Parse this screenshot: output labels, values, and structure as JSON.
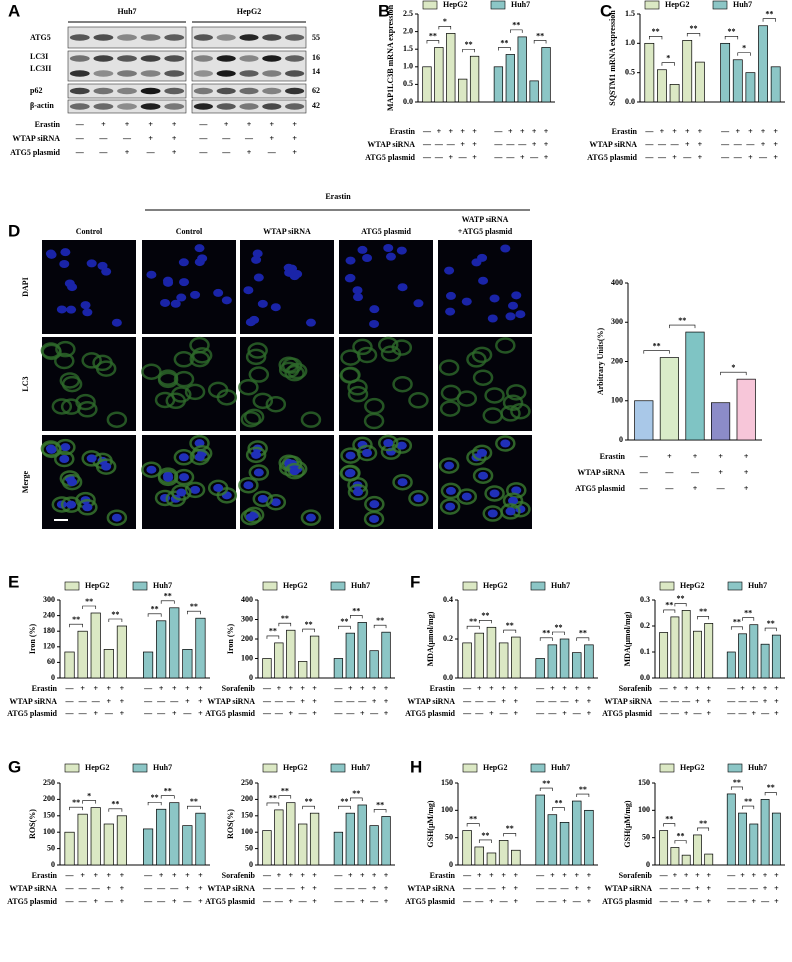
{
  "panel_labels": [
    "A",
    "B",
    "C",
    "D",
    "E",
    "F",
    "G",
    "H"
  ],
  "blot": {
    "cell_lines": [
      "Huh7",
      "HepG2"
    ],
    "proteins": [
      "ATG5",
      "LC3I",
      "LC3II",
      "p62",
      "β-actin"
    ],
    "sizes": [
      "55",
      "16",
      "14",
      "62",
      "42"
    ],
    "conditions": [
      {
        "name": "Erastin",
        "values": [
          "—",
          "+",
          "+",
          "+",
          "+",
          "—",
          "+",
          "+",
          "+",
          "+"
        ]
      },
      {
        "name": "WTAP siRNA",
        "values": [
          "—",
          "—",
          "—",
          "+",
          "+",
          "—",
          "—",
          "—",
          "+",
          "+"
        ]
      },
      {
        "name": "ATG5 plasmid",
        "values": [
          "—",
          "—",
          "+",
          "—",
          "+",
          "—",
          "—",
          "+",
          "—",
          "+"
        ]
      }
    ]
  },
  "microscopy": {
    "treatment": "Erastin",
    "columns": [
      [
        "Control"
      ],
      [
        "Control"
      ],
      [
        "WTAP siRNA"
      ],
      [
        "ATG5 plasmid"
      ],
      [
        "WATP siRNA",
        "+ATG5 plasmid"
      ]
    ],
    "rows": [
      "DAPI",
      "LC3",
      "Merge"
    ]
  },
  "chart_data": [
    {
      "type": "bar",
      "ylabel": "MAP1LC3B mRNA expression",
      "ylim": [
        0,
        2.5
      ],
      "yticks": [
        {
          "value": 0,
          "label": "0.0"
        },
        0.5,
        {
          "value": 1,
          "label": "1.0"
        },
        1.5,
        {
          "value": 2,
          "label": "2.0"
        },
        2.5
      ],
      "series": [
        {
          "name": "HepG2",
          "color": "#dbe8c4",
          "values": [
            1.0,
            1.55,
            1.95,
            0.65,
            1.3
          ],
          "significance": [
            null,
            "**",
            "*",
            null,
            "**"
          ]
        },
        {
          "name": "Huh7",
          "color": "#8cc6c6",
          "values": [
            1.0,
            1.35,
            1.85,
            0.6,
            1.55
          ],
          "significance": [
            null,
            "**",
            "**",
            null,
            "**"
          ]
        }
      ],
      "conditions": [
        {
          "name": "Erastin",
          "values": [
            "—",
            "+",
            "+",
            "+",
            "+",
            "—",
            "+",
            "+",
            "+",
            "+"
          ]
        },
        {
          "name": "WTAP siRNA",
          "values": [
            "—",
            "—",
            "—",
            "+",
            "+",
            "—",
            "—",
            "—",
            "+",
            "+"
          ]
        },
        {
          "name": "ATG5 plasmid",
          "values": [
            "—",
            "—",
            "+",
            "—",
            "+",
            "—",
            "—",
            "+",
            "—",
            "+"
          ]
        }
      ]
    },
    {
      "type": "bar",
      "ylabel": "SQSTM1 mRNA expression",
      "ylim": [
        0,
        1.5
      ],
      "yticks": [
        {
          "value": 0,
          "label": "0.0"
        },
        0.5,
        {
          "value": 1,
          "label": "1.0"
        },
        1.5
      ],
      "series": [
        {
          "name": "HepG2",
          "color": "#dbe8c4",
          "values": [
            1.0,
            0.55,
            0.3,
            1.05,
            0.68
          ],
          "significance": [
            null,
            "**",
            "*",
            null,
            "**"
          ]
        },
        {
          "name": "Huh7",
          "color": "#8cc6c6",
          "values": [
            1.0,
            0.72,
            0.5,
            1.3,
            0.6
          ],
          "significance": [
            null,
            "**",
            "*",
            null,
            "**"
          ]
        }
      ],
      "conditions": [
        {
          "name": "Erastin",
          "values": [
            "—",
            "+",
            "+",
            "+",
            "+",
            "—",
            "+",
            "+",
            "+",
            "+"
          ]
        },
        {
          "name": "WTAP siRNA",
          "values": [
            "—",
            "—",
            "—",
            "+",
            "+",
            "—",
            "—",
            "—",
            "+",
            "+"
          ]
        },
        {
          "name": "ATG5 plasmid",
          "values": [
            "—",
            "—",
            "+",
            "—",
            "+",
            "—",
            "—",
            "+",
            "—",
            "+"
          ]
        }
      ]
    },
    {
      "type": "bar",
      "ylabel": "Arbitrary Units(%)",
      "ylim": [
        0,
        400
      ],
      "yticks": [
        0,
        100,
        200,
        300,
        400
      ],
      "values": [
        100,
        210,
        275,
        95,
        155
      ],
      "colors": [
        "#a9c8e8",
        "#d9ecc8",
        "#7fc4c4",
        "#8c8cc8",
        "#f7c6d9"
      ],
      "significance": [
        null,
        "**",
        "**",
        null,
        "*"
      ],
      "conditions": [
        {
          "name": "Erastin",
          "values": [
            "—",
            "+",
            "+",
            "+",
            "+"
          ]
        },
        {
          "name": "WTAP siRNA",
          "values": [
            "—",
            "—",
            "—",
            "+",
            "+"
          ]
        },
        {
          "name": "ATG5 plasmid",
          "values": [
            "—",
            "—",
            "+",
            "—",
            "+"
          ]
        }
      ]
    },
    {
      "type": "bar",
      "ylabel": "Iron (%)",
      "ylim": [
        0,
        300
      ],
      "yticks": [
        0,
        60,
        120,
        180,
        240,
        300
      ],
      "series": [
        {
          "name": "HepG2",
          "color": "#dbe8c4",
          "values": [
            100,
            180,
            250,
            110,
            200
          ],
          "significance": [
            null,
            "**",
            "**",
            null,
            "**"
          ]
        },
        {
          "name": "Huh7",
          "color": "#8cc6c6",
          "values": [
            100,
            220,
            270,
            110,
            230
          ],
          "significance": [
            null,
            "**",
            "**",
            null,
            "**"
          ]
        }
      ],
      "conditions": [
        {
          "name": "Erastin",
          "values": [
            "—",
            "+",
            "+",
            "+",
            "+",
            "—",
            "+",
            "+",
            "+",
            "+"
          ]
        },
        {
          "name": "WTAP siRNA",
          "values": [
            "—",
            "—",
            "—",
            "+",
            "+",
            "—",
            "—",
            "—",
            "+",
            "+"
          ]
        },
        {
          "name": "ATG5 plasmid",
          "values": [
            "—",
            "—",
            "+",
            "—",
            "+",
            "—",
            "—",
            "+",
            "—",
            "+"
          ]
        }
      ]
    },
    {
      "type": "bar",
      "ylabel": "Iron (%)",
      "ylim": [
        0,
        400
      ],
      "yticks": [
        0,
        100,
        200,
        300,
        400
      ],
      "series": [
        {
          "name": "HepG2",
          "color": "#dbe8c4",
          "values": [
            100,
            180,
            245,
            85,
            215
          ],
          "significance": [
            null,
            "**",
            "**",
            null,
            "**"
          ]
        },
        {
          "name": "Huh7",
          "color": "#8cc6c6",
          "values": [
            100,
            230,
            285,
            140,
            235
          ],
          "significance": [
            null,
            "**",
            "**",
            null,
            "**"
          ]
        }
      ],
      "conditions": [
        {
          "name": "Sorafenib",
          "values": [
            "—",
            "+",
            "+",
            "+",
            "+",
            "—",
            "+",
            "+",
            "+",
            "+"
          ]
        },
        {
          "name": "WTAP siRNA",
          "values": [
            "—",
            "—",
            "—",
            "+",
            "+",
            "—",
            "—",
            "—",
            "+",
            "+"
          ]
        },
        {
          "name": "ATG5 plasmid",
          "values": [
            "—",
            "—",
            "+",
            "—",
            "+",
            "—",
            "—",
            "+",
            "—",
            "+"
          ]
        }
      ]
    },
    {
      "type": "bar",
      "ylabel": "MDA(μmol/mg)",
      "ylim": [
        0,
        0.4
      ],
      "yticks": [
        {
          "value": 0,
          "label": "0.0"
        },
        0.2,
        0.4
      ],
      "series": [
        {
          "name": "HepG2",
          "color": "#dbe8c4",
          "values": [
            0.18,
            0.23,
            0.26,
            0.18,
            0.21
          ],
          "significance": [
            null,
            "**",
            "**",
            null,
            "**"
          ]
        },
        {
          "name": "Huh7",
          "color": "#8cc6c6",
          "values": [
            0.1,
            0.17,
            0.2,
            0.13,
            0.17
          ],
          "significance": [
            null,
            "**",
            "**",
            null,
            "**"
          ]
        }
      ],
      "conditions": [
        {
          "name": "Erastin",
          "values": [
            "—",
            "+",
            "+",
            "+",
            "+",
            "—",
            "+",
            "+",
            "+",
            "+"
          ]
        },
        {
          "name": "WTAP siRNA",
          "values": [
            "—",
            "—",
            "—",
            "+",
            "+",
            "—",
            "—",
            "—",
            "+",
            "+"
          ]
        },
        {
          "name": "ATG5 plasmid",
          "values": [
            "—",
            "—",
            "+",
            "—",
            "+",
            "—",
            "—",
            "+",
            "—",
            "+"
          ]
        }
      ]
    },
    {
      "type": "bar",
      "ylabel": "MDA(μmol/mg)",
      "ylim": [
        0,
        0.3
      ],
      "yticks": [
        {
          "value": 0,
          "label": "0.0"
        },
        0.1,
        0.2,
        0.3
      ],
      "series": [
        {
          "name": "HepG2",
          "color": "#dbe8c4",
          "values": [
            0.175,
            0.235,
            0.26,
            0.18,
            0.21
          ],
          "significance": [
            null,
            "**",
            "**",
            null,
            "**"
          ]
        },
        {
          "name": "Huh7",
          "color": "#8cc6c6",
          "values": [
            0.1,
            0.17,
            0.205,
            0.13,
            0.165
          ],
          "significance": [
            null,
            "**",
            "**",
            null,
            "**"
          ]
        }
      ],
      "conditions": [
        {
          "name": "Sorafenib",
          "values": [
            "—",
            "+",
            "+",
            "+",
            "+",
            "—",
            "+",
            "+",
            "+",
            "+"
          ]
        },
        {
          "name": "WTAP siRNA",
          "values": [
            "—",
            "—",
            "—",
            "+",
            "+",
            "—",
            "—",
            "—",
            "+",
            "+"
          ]
        },
        {
          "name": "ATG5 plasmid",
          "values": [
            "—",
            "—",
            "+",
            "—",
            "+",
            "—",
            "—",
            "+",
            "—",
            "+"
          ]
        }
      ]
    },
    {
      "type": "bar",
      "ylabel": "ROS(%)",
      "ylim": [
        0,
        250
      ],
      "yticks": [
        0,
        50,
        100,
        150,
        200,
        250
      ],
      "series": [
        {
          "name": "HepG2",
          "color": "#dbe8c4",
          "values": [
            100,
            155,
            175,
            125,
            150
          ],
          "significance": [
            null,
            "**",
            "*",
            null,
            "**"
          ]
        },
        {
          "name": "Huh7",
          "color": "#8cc6c6",
          "values": [
            110,
            170,
            190,
            120,
            158
          ],
          "significance": [
            null,
            "**",
            "**",
            null,
            "**"
          ]
        }
      ],
      "conditions": [
        {
          "name": "Erastin",
          "values": [
            "—",
            "+",
            "+",
            "+",
            "+",
            "—",
            "+",
            "+",
            "+",
            "+"
          ]
        },
        {
          "name": "WTAP siRNA",
          "values": [
            "—",
            "—",
            "—",
            "+",
            "+",
            "—",
            "—",
            "—",
            "+",
            "+"
          ]
        },
        {
          "name": "ATG5 plasmid",
          "values": [
            "—",
            "—",
            "+",
            "—",
            "+",
            "—",
            "—",
            "+",
            "—",
            "+"
          ]
        }
      ]
    },
    {
      "type": "bar",
      "ylabel": "ROS(%)",
      "ylim": [
        0,
        250
      ],
      "yticks": [
        0,
        50,
        100,
        150,
        200,
        250
      ],
      "series": [
        {
          "name": "HepG2",
          "color": "#dbe8c4",
          "values": [
            105,
            168,
            190,
            125,
            158
          ],
          "significance": [
            null,
            "**",
            "**",
            null,
            "**"
          ]
        },
        {
          "name": "Huh7",
          "color": "#8cc6c6",
          "values": [
            100,
            158,
            183,
            120,
            148
          ],
          "significance": [
            null,
            "**",
            "**",
            null,
            "**"
          ]
        }
      ],
      "conditions": [
        {
          "name": "Sorafenib",
          "values": [
            "—",
            "+",
            "+",
            "+",
            "+",
            "—",
            "+",
            "+",
            "+",
            "+"
          ]
        },
        {
          "name": "WTAP siRNA",
          "values": [
            "—",
            "—",
            "—",
            "+",
            "+",
            "—",
            "—",
            "—",
            "+",
            "+"
          ]
        },
        {
          "name": "ATG5 plasmid",
          "values": [
            "—",
            "—",
            "+",
            "—",
            "+",
            "—",
            "—",
            "+",
            "—",
            "+"
          ]
        }
      ]
    },
    {
      "type": "bar",
      "ylabel": "GSH(μM/mg)",
      "ylim": [
        0,
        150
      ],
      "yticks": [
        0,
        50,
        100,
        150
      ],
      "series": [
        {
          "name": "HepG2",
          "color": "#dbe8c4",
          "values": [
            63,
            33,
            22,
            45,
            27
          ],
          "significance": [
            null,
            "**",
            "**",
            null,
            "**"
          ]
        },
        {
          "name": "Huh7",
          "color": "#8cc6c6",
          "values": [
            128,
            92,
            78,
            117,
            100
          ],
          "significance": [
            null,
            "**",
            "**",
            null,
            "**"
          ]
        }
      ],
      "conditions": [
        {
          "name": "Erastin",
          "values": [
            "—",
            "+",
            "+",
            "+",
            "+",
            "—",
            "+",
            "+",
            "+",
            "+"
          ]
        },
        {
          "name": "WTAP siRNA",
          "values": [
            "—",
            "—",
            "—",
            "+",
            "+",
            "—",
            "—",
            "—",
            "+",
            "+"
          ]
        },
        {
          "name": "ATG5 plasmid",
          "values": [
            "—",
            "—",
            "+",
            "—",
            "+",
            "—",
            "—",
            "+",
            "—",
            "+"
          ]
        }
      ]
    },
    {
      "type": "bar",
      "ylabel": "GSH(μM/mg)",
      "ylim": [
        0,
        150
      ],
      "yticks": [
        0,
        50,
        100,
        150
      ],
      "series": [
        {
          "name": "HepG2",
          "color": "#dbe8c4",
          "values": [
            63,
            32,
            18,
            55,
            20
          ],
          "significance": [
            null,
            "**",
            "**",
            null,
            "**"
          ]
        },
        {
          "name": "Huh7",
          "color": "#8cc6c6",
          "values": [
            130,
            95,
            75,
            120,
            95
          ],
          "significance": [
            null,
            "**",
            "**",
            null,
            "**"
          ]
        }
      ],
      "conditions": [
        {
          "name": "Sorafenib",
          "values": [
            "—",
            "+",
            "+",
            "+",
            "+",
            "—",
            "+",
            "+",
            "+",
            "+"
          ]
        },
        {
          "name": "WTAP siRNA",
          "values": [
            "—",
            "—",
            "—",
            "+",
            "+",
            "—",
            "—",
            "—",
            "+",
            "+"
          ]
        },
        {
          "name": "ATG5 plasmid",
          "values": [
            "—",
            "—",
            "+",
            "—",
            "+",
            "—",
            "—",
            "+",
            "—",
            "+"
          ]
        }
      ]
    }
  ]
}
